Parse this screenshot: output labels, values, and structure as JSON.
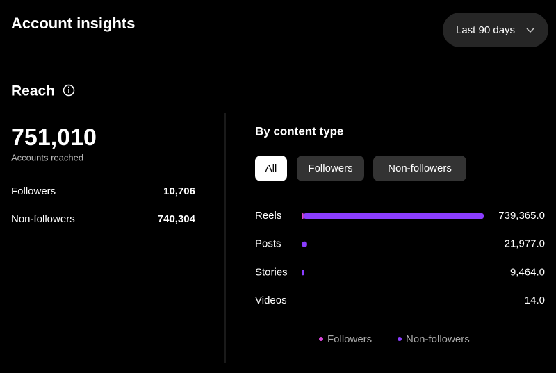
{
  "header": {
    "title": "Account insights",
    "period": "Last 90 days"
  },
  "reach": {
    "title": "Reach",
    "total": "751,010",
    "total_caption": "Accounts reached",
    "rows": [
      {
        "label": "Followers",
        "value": "10,706"
      },
      {
        "label": "Non-followers",
        "value": "740,304"
      }
    ]
  },
  "filters": [
    "All",
    "Followers",
    "Non-followers"
  ],
  "chart_data": {
    "type": "bar",
    "orientation": "horizontal",
    "stacked": true,
    "title": "By content type",
    "categories": [
      "Reels",
      "Posts",
      "Stories",
      "Videos"
    ],
    "series": [
      {
        "name": "Followers",
        "color": "#d946d9",
        "values": [
          8014,
          1500,
          1192,
          0
        ]
      },
      {
        "name": "Non-followers",
        "color": "#8b3dff",
        "values": [
          731351,
          20477,
          8272,
          14
        ]
      }
    ],
    "totals": [
      739365,
      21977,
      9464,
      14
    ],
    "total_labels": [
      "739,365.0",
      "21,977.0",
      "9,464.0",
      "14.0"
    ]
  }
}
